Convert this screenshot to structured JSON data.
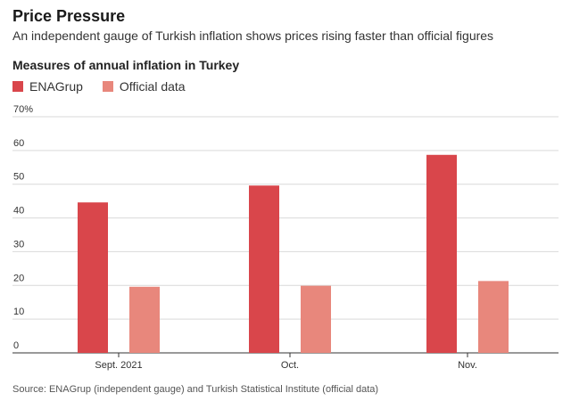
{
  "title": "Price Pressure",
  "subtitle": "An independent gauge of Turkish inflation shows prices rising faster than official figures",
  "source": "Source: ENAGrup (independent gauge) and Turkish Statistical Institute (official data)",
  "chart_data": {
    "type": "bar",
    "title": "Measures of annual inflation in Turkey",
    "xlabel": "",
    "ylabel": "",
    "ylim": [
      0,
      70
    ],
    "yticks": [
      0,
      10,
      20,
      30,
      40,
      50,
      60,
      70
    ],
    "ytick_labels": [
      "0",
      "10",
      "20",
      "30",
      "40",
      "50",
      "60",
      "70%"
    ],
    "categories": [
      "Sept. 2021",
      "Oct.",
      "Nov."
    ],
    "series": [
      {
        "name": "ENAGrup",
        "color": "#d9464b",
        "values": [
          44.6,
          49.6,
          58.7
        ]
      },
      {
        "name": "Official data",
        "color": "#e8877c",
        "values": [
          19.6,
          19.9,
          21.3
        ]
      }
    ],
    "grid": "horizontal",
    "legend": "top-left"
  }
}
